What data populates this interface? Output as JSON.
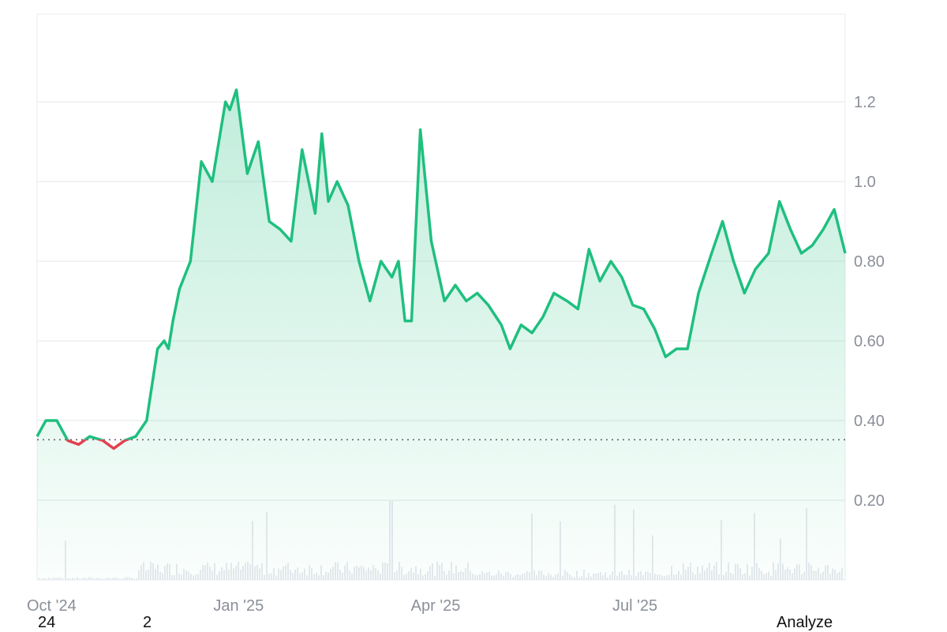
{
  "chart_data": {
    "type": "area",
    "title": "",
    "xlabel": "",
    "ylabel": "",
    "x_ticks": [
      "Oct '24",
      "Jan '25",
      "Apr '25",
      "Jul '25"
    ],
    "y_ticks": [
      "1.2",
      "1.0",
      "0.80",
      "0.60",
      "0.40",
      "0.20"
    ],
    "y_tick_values": [
      1.2,
      1.0,
      0.8,
      0.6,
      0.4,
      0.2
    ],
    "ylim": [
      0.0,
      1.42
    ],
    "xlim": [
      "2024-10-01",
      "2025-10-05"
    ],
    "grid": true,
    "baseline": 0.352,
    "colors": {
      "up": "#1fbf7f",
      "down": "#e0414f",
      "fill": "#1fbf7f",
      "grid": "#e8eaee",
      "volume": "#e6e9ee"
    },
    "series": [
      {
        "x": [
          "2024-10-01",
          "2024-10-05",
          "2024-10-10",
          "2024-10-15",
          "2024-10-20",
          "2024-10-25",
          "2024-10-31",
          "2024-11-05",
          "2024-11-10",
          "2024-11-15",
          "2024-11-20",
          "2024-11-25",
          "2024-11-28",
          "2024-11-30",
          "2024-12-02",
          "2024-12-05",
          "2024-12-10",
          "2024-12-15",
          "2024-12-20",
          "2024-12-23",
          "2024-12-26",
          "2024-12-28",
          "2024-12-31",
          "2025-01-05",
          "2025-01-10",
          "2025-01-15",
          "2025-01-20",
          "2025-01-25",
          "2025-01-30",
          "2025-02-05",
          "2025-02-08",
          "2025-02-11",
          "2025-02-15",
          "2025-02-20",
          "2025-02-25",
          "2025-03-02",
          "2025-03-07",
          "2025-03-12",
          "2025-03-15",
          "2025-03-18",
          "2025-03-21",
          "2025-03-25",
          "2025-03-30",
          "2025-04-05",
          "2025-04-10",
          "2025-04-15",
          "2025-04-20",
          "2025-04-25",
          "2025-05-01",
          "2025-05-05",
          "2025-05-10",
          "2025-05-15",
          "2025-05-20",
          "2025-05-25",
          "2025-05-31",
          "2025-06-05",
          "2025-06-10",
          "2025-06-15",
          "2025-06-20",
          "2025-06-25",
          "2025-06-30",
          "2025-07-05",
          "2025-07-10",
          "2025-07-15",
          "2025-07-20",
          "2025-07-25",
          "2025-07-30",
          "2025-08-05",
          "2025-08-10",
          "2025-08-15",
          "2025-08-20",
          "2025-08-25",
          "2025-08-31",
          "2025-09-05",
          "2025-09-10",
          "2025-09-15",
          "2025-09-20",
          "2025-09-25",
          "2025-09-30",
          "2025-10-05"
        ],
        "values": [
          0.36,
          0.4,
          0.4,
          0.35,
          0.34,
          0.36,
          0.35,
          0.33,
          0.35,
          0.36,
          0.4,
          0.58,
          0.6,
          0.58,
          0.65,
          0.73,
          0.8,
          1.05,
          1.0,
          1.1,
          1.2,
          1.18,
          1.23,
          1.02,
          1.1,
          0.9,
          0.88,
          0.85,
          1.08,
          0.92,
          1.12,
          0.95,
          1.0,
          0.94,
          0.8,
          0.7,
          0.8,
          0.76,
          0.8,
          0.65,
          0.65,
          1.13,
          0.85,
          0.7,
          0.74,
          0.7,
          0.72,
          0.69,
          0.64,
          0.58,
          0.64,
          0.62,
          0.66,
          0.72,
          0.7,
          0.68,
          0.83,
          0.75,
          0.8,
          0.76,
          0.69,
          0.68,
          0.63,
          0.56,
          0.58,
          0.58,
          0.72,
          0.82,
          0.9,
          0.8,
          0.72,
          0.78,
          0.82,
          0.95,
          0.88,
          0.82,
          0.84,
          0.88,
          0.93,
          0.82
        ]
      }
    ]
  },
  "footer": {
    "left": "24",
    "middle": "2",
    "right": "Analyze"
  }
}
